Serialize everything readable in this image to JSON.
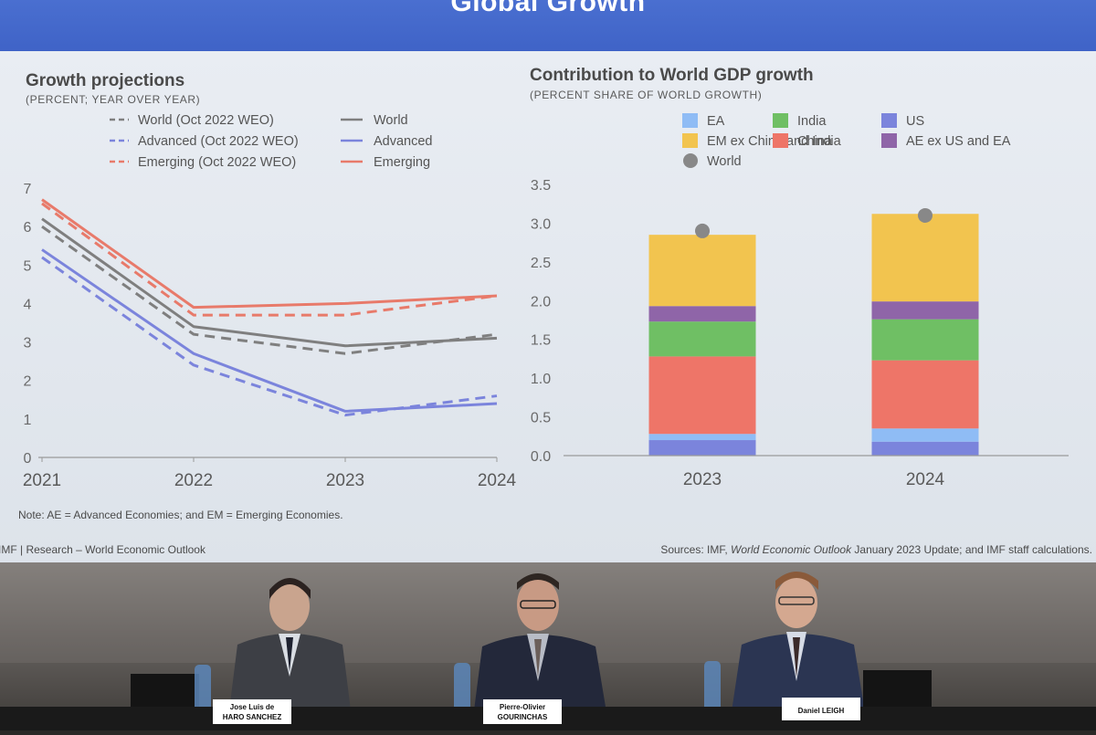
{
  "banner": {
    "title": "Global Growth"
  },
  "left_chart": {
    "title": "Growth projections",
    "subtitle": "(PERCENT; YEAR OVER YEAR)",
    "note": "Note: AE = Advanced Economies; and EM = Emerging Economies."
  },
  "right_chart": {
    "title": "Contribution to World GDP growth",
    "subtitle": "(PERCENT SHARE OF WORLD GROWTH)"
  },
  "footer": {
    "left": "IMF | Research – World Economic Outlook",
    "sources_prefix": "Sources: IMF, ",
    "sources_italic": "World Economic Outlook",
    "sources_suffix": " January 2023 Update; and IMF staff calculations."
  },
  "nameplates": [
    {
      "line1": "Jose Luis de",
      "line2": "HARO SANCHEZ"
    },
    {
      "line1": "Pierre-Olivier",
      "line2": "GOURINCHAS"
    },
    {
      "line1": "Daniel LEIGH",
      "line2": ""
    }
  ],
  "colors": {
    "world": "#7f7f7f",
    "advanced": "#7b84dc",
    "emerging": "#e87a6a",
    "EA": "#8fbcf5",
    "India": "#6fbf64",
    "US": "#7b84dc",
    "EM ex China and India": "#f2c44f",
    "China": "#ee7568",
    "AE ex US and EA": "#8f65a8",
    "World": "#888888"
  },
  "chart_data": [
    {
      "type": "line",
      "title": "Growth projections",
      "subtitle": "(PERCENT; YEAR OVER YEAR)",
      "x": [
        "2021",
        "2022",
        "2023",
        "2024"
      ],
      "ylim": [
        0,
        7
      ],
      "yticks": [
        0,
        1,
        2,
        3,
        4,
        5,
        6,
        7
      ],
      "series": [
        {
          "name": "World (Oct 2022 WEO)",
          "style": "dashed",
          "color": "#7f7f7f",
          "values": [
            6.0,
            3.2,
            2.7,
            3.2
          ]
        },
        {
          "name": "Advanced (Oct 2022 WEO)",
          "style": "dashed",
          "color": "#7b84dc",
          "values": [
            5.2,
            2.4,
            1.1,
            1.6
          ]
        },
        {
          "name": "Emerging (Oct 2022 WEO)",
          "style": "dashed",
          "color": "#e87a6a",
          "values": [
            6.6,
            3.7,
            3.7,
            4.2
          ]
        },
        {
          "name": "World",
          "style": "solid",
          "color": "#7f7f7f",
          "values": [
            6.2,
            3.4,
            2.9,
            3.1
          ]
        },
        {
          "name": "Advanced",
          "style": "solid",
          "color": "#7b84dc",
          "values": [
            5.4,
            2.7,
            1.2,
            1.4
          ]
        },
        {
          "name": "Emerging",
          "style": "solid",
          "color": "#e87a6a",
          "values": [
            6.7,
            3.9,
            4.0,
            4.2
          ]
        }
      ],
      "legend": "top",
      "grid": false
    },
    {
      "type": "bar",
      "stacked": true,
      "title": "Contribution to World GDP growth",
      "subtitle": "(PERCENT SHARE OF WORLD GROWTH)",
      "categories": [
        "2023",
        "2024"
      ],
      "ylim": [
        0,
        3.5
      ],
      "yticks": [
        "0.0",
        "0.5",
        "1.0",
        "1.5",
        "2.0",
        "2.5",
        "3.0",
        "3.5"
      ],
      "legend_order": [
        "EA",
        "India",
        "US",
        "EM ex China and India",
        "China",
        "AE ex US and EA",
        "World"
      ],
      "series": [
        {
          "name": "US",
          "values": [
            0.2,
            0.18
          ]
        },
        {
          "name": "EA",
          "values": [
            0.08,
            0.17
          ]
        },
        {
          "name": "China",
          "values": [
            1.0,
            0.88
          ]
        },
        {
          "name": "India",
          "values": [
            0.45,
            0.53
          ]
        },
        {
          "name": "AE ex US and EA",
          "values": [
            0.2,
            0.23
          ]
        },
        {
          "name": "EM ex China and India",
          "values": [
            0.92,
            1.13
          ]
        }
      ],
      "world_markers": [
        {
          "name": "World",
          "values": [
            2.9,
            3.1
          ]
        }
      ],
      "legend": "top",
      "grid": false
    }
  ]
}
